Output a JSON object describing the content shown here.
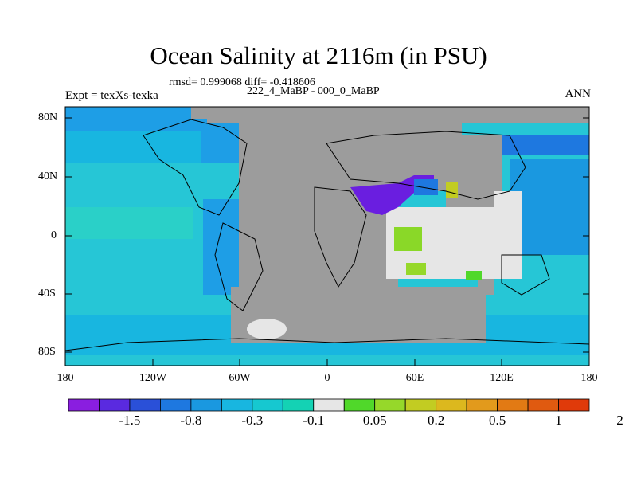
{
  "title": "Ocean Salinity at 2116m (in PSU)",
  "stats_line": "rmsd= 0.999068 diff= -0.418606",
  "comparison_line": "222_4_MaBP - 000_0_MaBP",
  "left_string": "Expt = texXs-texka",
  "right_string": "ANN",
  "y_axis_ticks": [
    "80N",
    "40N",
    "0",
    "40S",
    "80S"
  ],
  "x_axis_ticks": [
    "180",
    "120W",
    "60W",
    "0",
    "60E",
    "120E",
    "180"
  ],
  "colorbar": {
    "labels": [
      "-1.5",
      "-0.8",
      "-0.3",
      "-0.1",
      "0.05",
      "0.2",
      "0.5",
      "1",
      "2"
    ],
    "colors": [
      "#8a1ee0",
      "#5a2ae0",
      "#2a50d8",
      "#1e78e0",
      "#1a98e0",
      "#18b6e0",
      "#16c8d0",
      "#14d2b4",
      "#e6e6e6",
      "#50d82a",
      "#96d82a",
      "#c2cc22",
      "#dcb81e",
      "#e29a1c",
      "#e27a14",
      "#e05a10",
      "#e03a0a"
    ]
  },
  "colors": {
    "land": "#9c9c9c",
    "ocean_base": "#26c6d6",
    "ocean_blue": "#1e9ee6",
    "negative_strong": "#6a1ee0",
    "near_zero": "#e6e6e6",
    "positive": "#8ad828"
  }
}
